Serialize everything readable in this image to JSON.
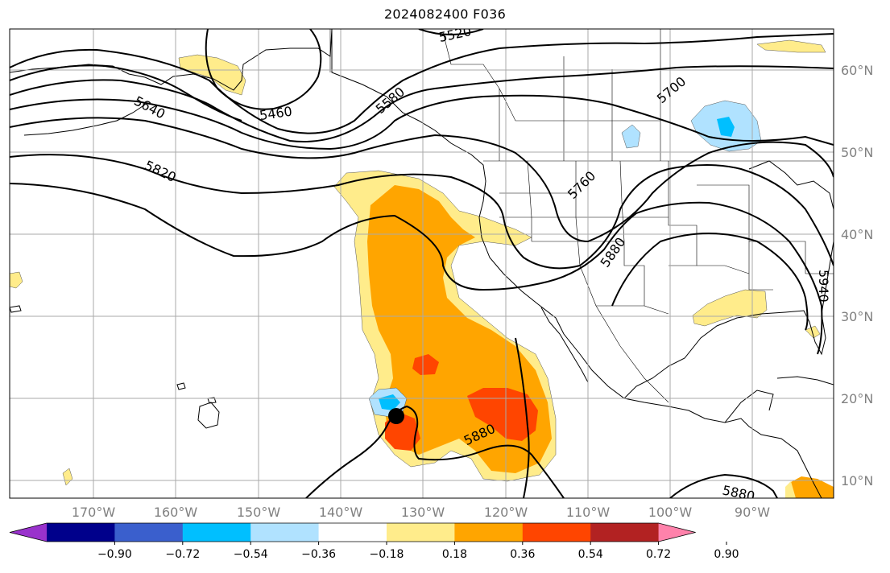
{
  "title": "2024082400 F036",
  "map": {
    "lat_labels": [
      "60°N",
      "50°N",
      "40°N",
      "30°N",
      "20°N",
      "10°N"
    ],
    "lon_labels": [
      "170°W",
      "160°W",
      "150°W",
      "140°W",
      "130°W",
      "120°W",
      "110°W",
      "100°W",
      "90°W"
    ],
    "contour_labels": [
      "5520",
      "5460",
      "5640",
      "5580",
      "5700",
      "5760",
      "5820",
      "5880",
      "5880",
      "5880",
      "5940"
    ],
    "storm_marker": "tropical-cyclone-position"
  },
  "colorbar": {
    "ticks": [
      "−0.90",
      "−0.72",
      "−0.54",
      "−0.36",
      "−0.18",
      "0.18",
      "0.36",
      "0.54",
      "0.72",
      "0.90"
    ],
    "colors": [
      "#9932cc",
      "#00008b",
      "#3a5fcd",
      "#00bfff",
      "#b0e2ff",
      "#ffffff",
      "#ffec8b",
      "#ffa500",
      "#ff4500",
      "#b22222",
      "#ff82ab"
    ]
  }
}
